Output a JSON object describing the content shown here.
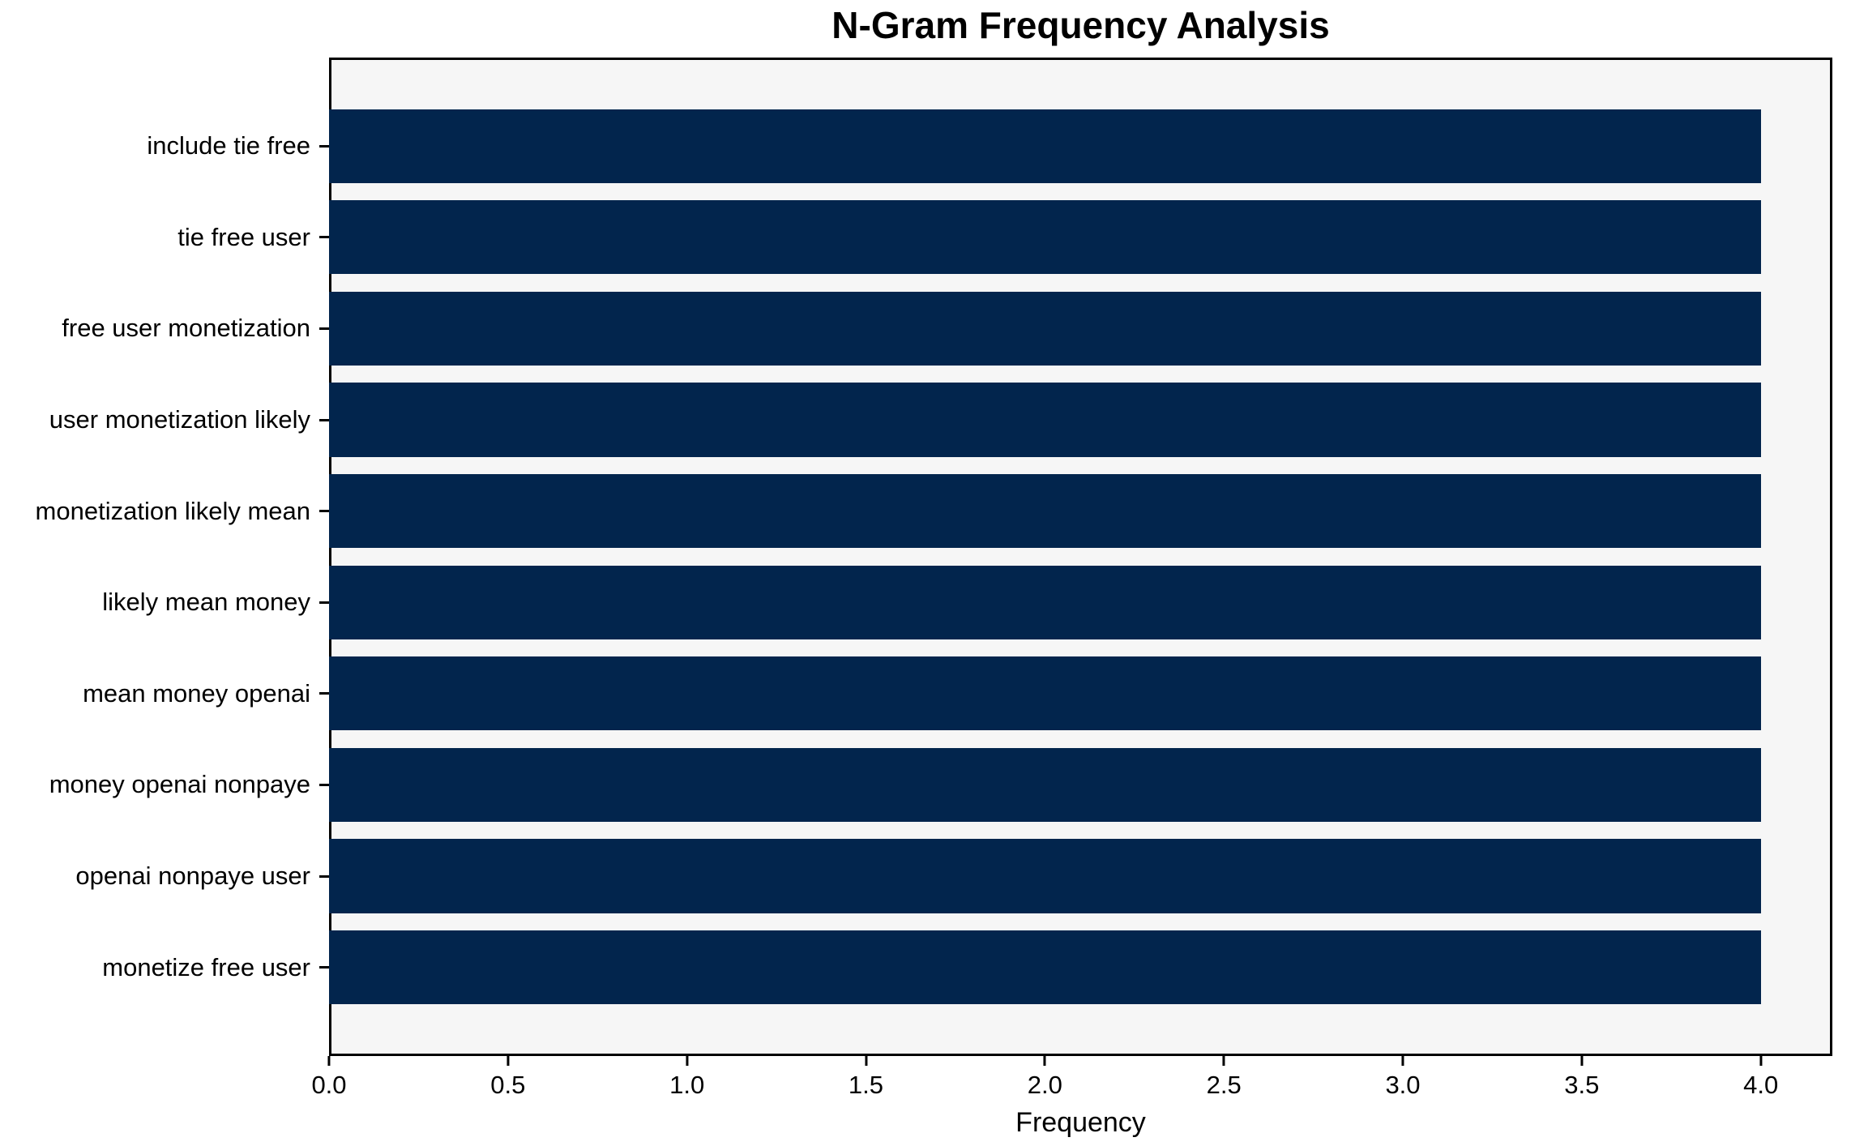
{
  "chart_data": {
    "type": "bar",
    "orientation": "horizontal",
    "title": "N-Gram Frequency Analysis",
    "xlabel": "Frequency",
    "ylabel": "",
    "categories": [
      "include tie free",
      "tie free user",
      "free user monetization",
      "user monetization likely",
      "monetization likely mean",
      "likely mean money",
      "mean money openai",
      "money openai nonpaye",
      "openai nonpaye user",
      "monetize free user"
    ],
    "values": [
      4,
      4,
      4,
      4,
      4,
      4,
      4,
      4,
      4,
      4
    ],
    "xlim": [
      0,
      4.2
    ],
    "xticks": [
      0.0,
      0.5,
      1.0,
      1.5,
      2.0,
      2.5,
      3.0,
      3.5,
      4.0
    ],
    "xtick_labels": [
      "0.0",
      "0.5",
      "1.0",
      "1.5",
      "2.0",
      "2.5",
      "3.0",
      "3.5",
      "4.0"
    ],
    "bar_height_frac": 0.8,
    "grid": false,
    "legend": null,
    "colors": {
      "bar": "#02254d",
      "plot_bg": "#f6f6f6",
      "figure_bg": "#ffffff",
      "spine": "#000000",
      "text": "#000000"
    }
  }
}
